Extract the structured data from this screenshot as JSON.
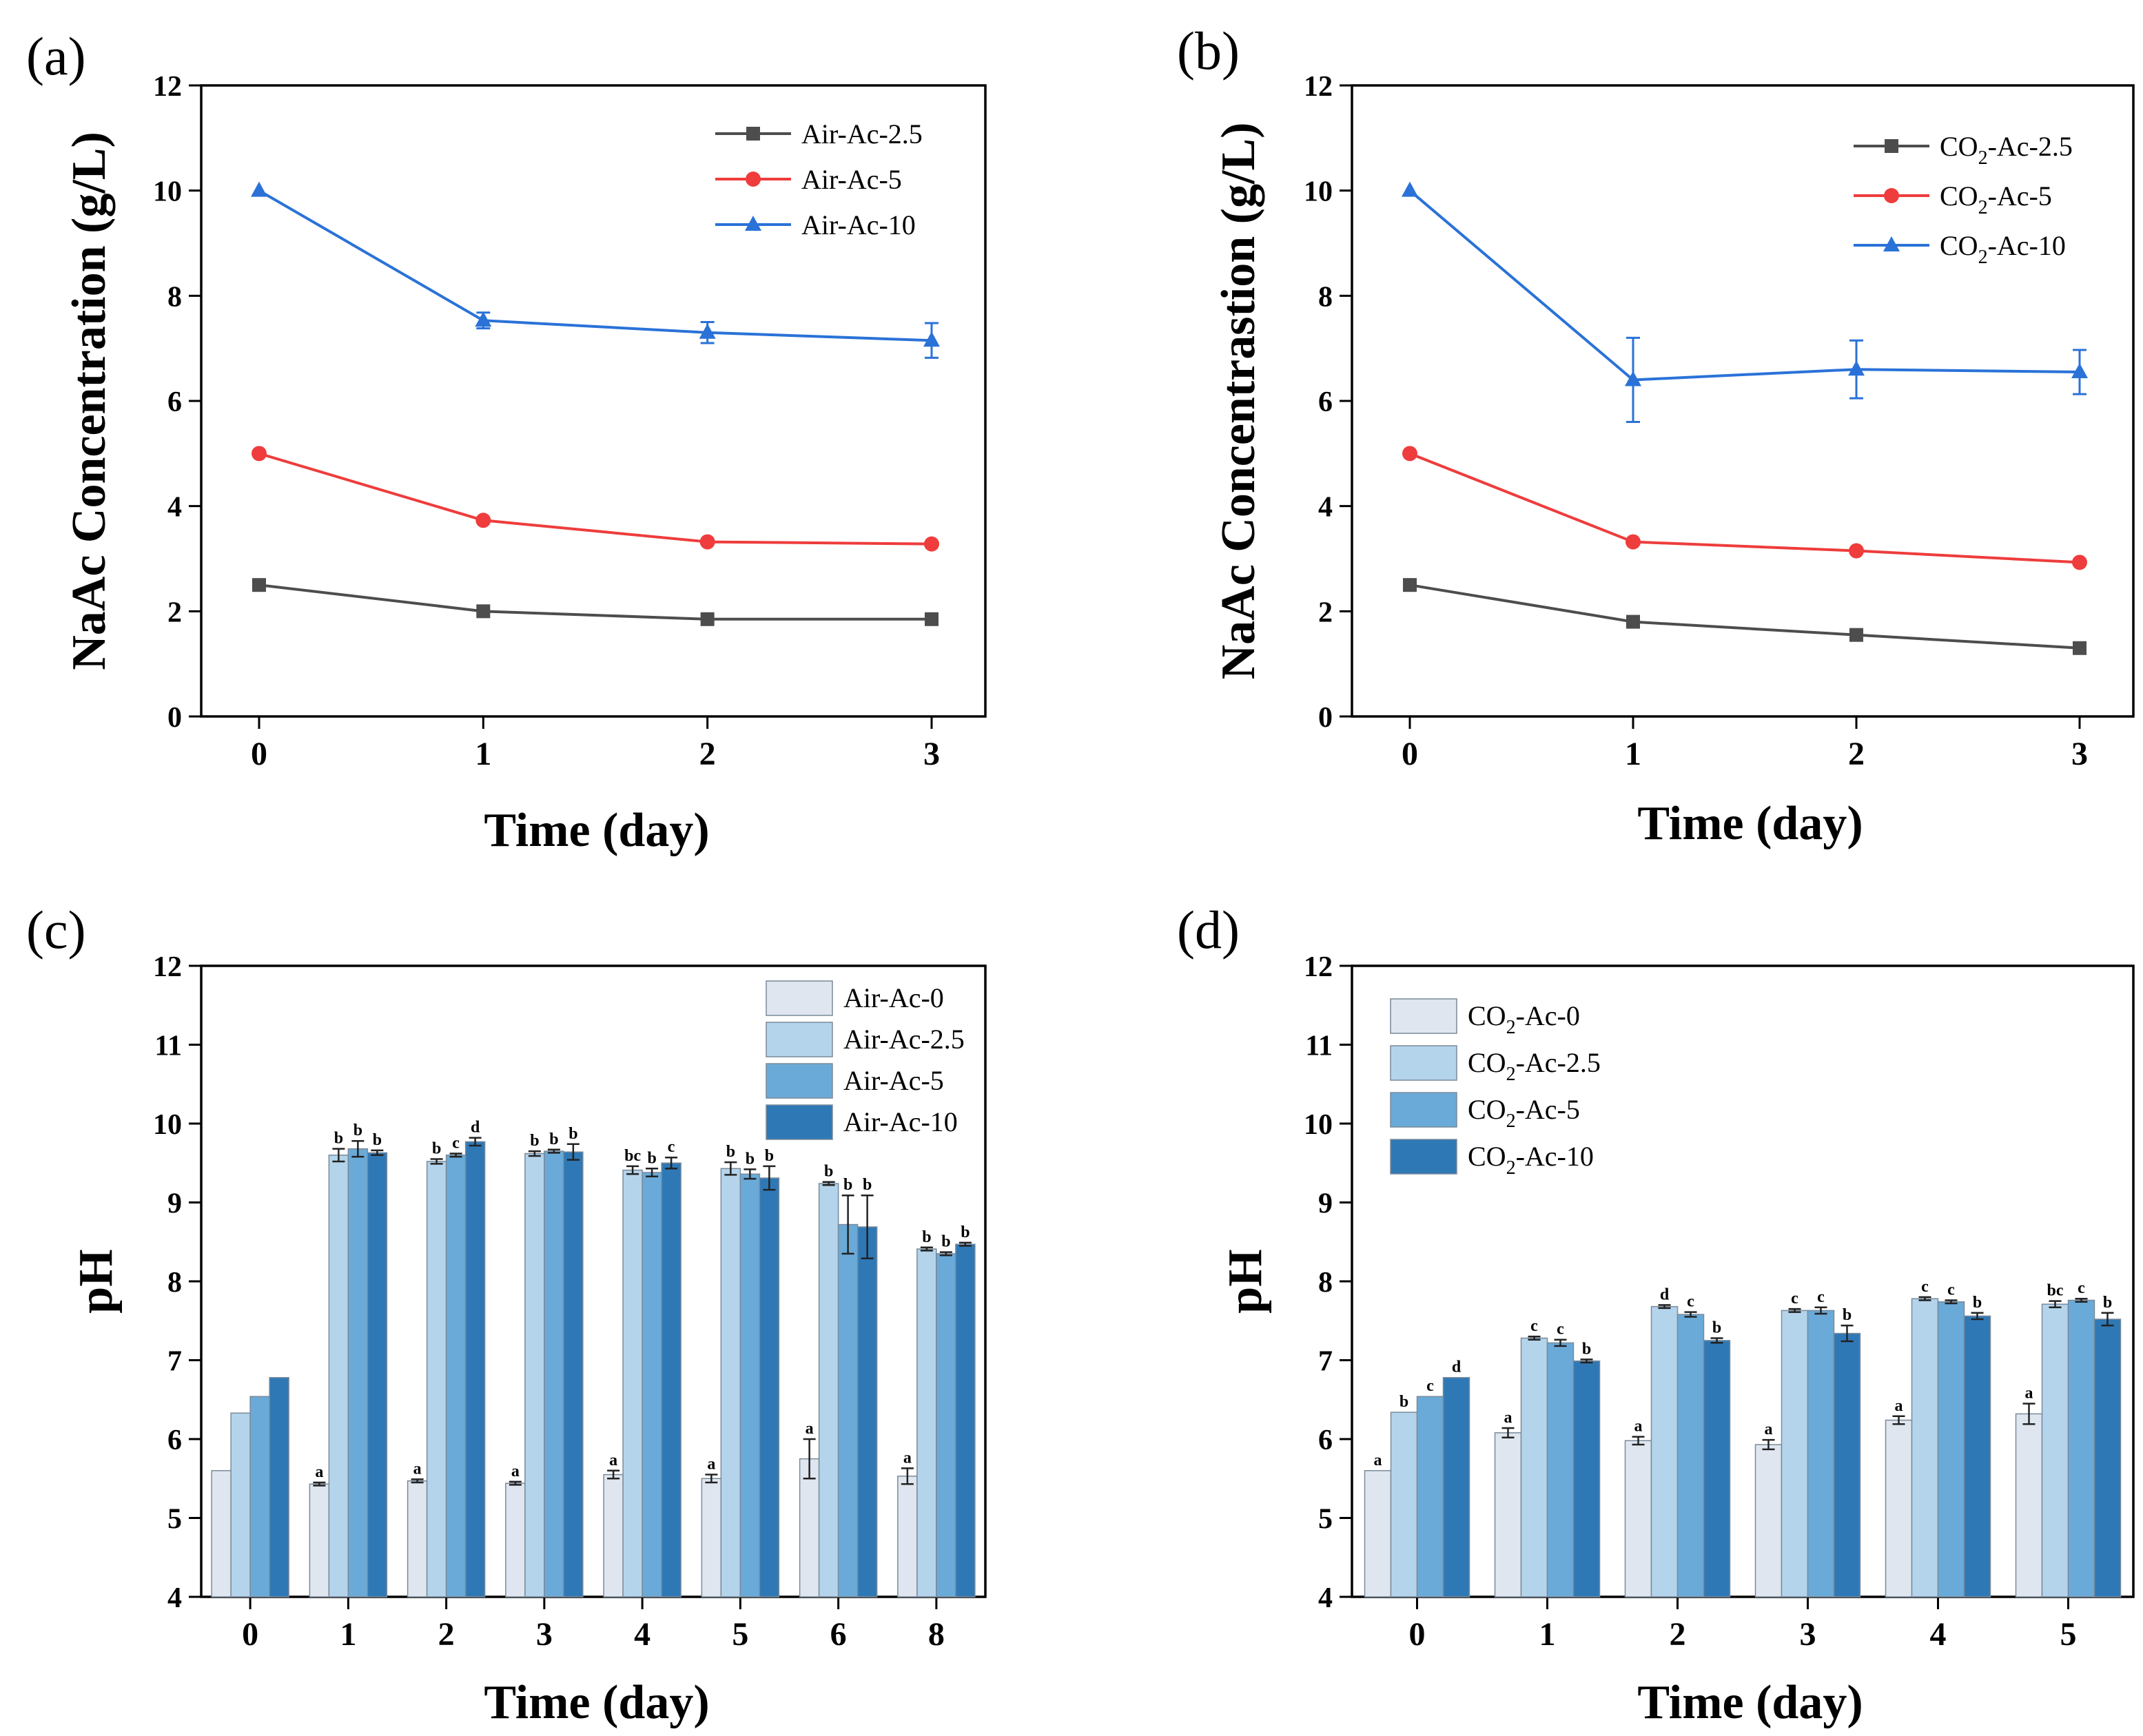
{
  "chart_data": [
    {
      "id": "a",
      "panel_label": "(a)",
      "type": "line",
      "xlabel": "Time (day)",
      "ylabel": "NaAc Concentration (g/L)",
      "ylim": [
        0,
        12
      ],
      "yticks": [
        "0",
        "2",
        "4",
        "6",
        "8",
        "10",
        "12"
      ],
      "categories": [
        "0",
        "1",
        "2",
        "3"
      ],
      "legend_position": "top-right",
      "series": [
        {
          "name": "Air-Ac-2.5",
          "legend_base": "Air-Ac-2.5",
          "color": "#4d4d4d",
          "marker": "square",
          "values": [
            2.5,
            2.0,
            1.85,
            1.85
          ],
          "errors": [
            0,
            0,
            0,
            0
          ]
        },
        {
          "name": "Air-Ac-5",
          "legend_base": "Air-Ac-5",
          "color": "#ef3c3c",
          "marker": "circle",
          "values": [
            5.0,
            3.73,
            3.32,
            3.28
          ],
          "errors": [
            0,
            0,
            0,
            0
          ]
        },
        {
          "name": "Air-Ac-10",
          "legend_base": "Air-Ac-10",
          "color": "#2a72d8",
          "marker": "triangle",
          "values": [
            10.0,
            7.53,
            7.3,
            7.15
          ],
          "errors": [
            0,
            0.15,
            0.2,
            0.33
          ]
        }
      ]
    },
    {
      "id": "b",
      "panel_label": "(b)",
      "type": "line",
      "xlabel": "Time (day)",
      "ylabel": "NaAc Concentrastion (g/L)",
      "ylim": [
        0,
        12
      ],
      "yticks": [
        "0",
        "2",
        "4",
        "6",
        "8",
        "10",
        "12"
      ],
      "categories": [
        "0",
        "1",
        "2",
        "3"
      ],
      "legend_position": "top-right",
      "series": [
        {
          "name": "CO2-Ac-2.5",
          "legend_base": "CO",
          "legend_sub": "2",
          "legend_rest": "-Ac-2.5",
          "color": "#4d4d4d",
          "marker": "square",
          "values": [
            2.5,
            1.8,
            1.55,
            1.3
          ],
          "errors": [
            0,
            0,
            0,
            0
          ]
        },
        {
          "name": "CO2-Ac-5",
          "legend_base": "CO",
          "legend_sub": "2",
          "legend_rest": "-Ac-5",
          "color": "#ef3c3c",
          "marker": "circle",
          "values": [
            5.0,
            3.32,
            3.15,
            2.93
          ],
          "errors": [
            0,
            0,
            0,
            0
          ]
        },
        {
          "name": "CO2-Ac-10",
          "legend_base": "CO",
          "legend_sub": "2",
          "legend_rest": "-Ac-10",
          "color": "#2a72d8",
          "marker": "triangle",
          "values": [
            10.0,
            6.4,
            6.6,
            6.55
          ],
          "errors": [
            0,
            0.8,
            0.55,
            0.42
          ]
        }
      ]
    },
    {
      "id": "c",
      "panel_label": "(c)",
      "type": "bar",
      "xlabel": "Time (day)",
      "ylabel": "pH",
      "ylim": [
        4,
        12
      ],
      "yticks": [
        "4",
        "5",
        "6",
        "7",
        "8",
        "9",
        "10",
        "11",
        "12"
      ],
      "categories": [
        "0",
        "1",
        "2",
        "3",
        "4",
        "5",
        "6",
        "8"
      ],
      "legend_position": "top-right",
      "series": [
        {
          "name": "Air-Ac-0",
          "legend_base": "Air-Ac-0",
          "color": "#dfe6ef",
          "values": [
            5.6,
            5.43,
            5.47,
            5.44,
            5.55,
            5.5,
            5.75,
            5.53
          ],
          "errors": [
            0,
            0.02,
            0.02,
            0.02,
            0.05,
            0.05,
            0.25,
            0.1
          ],
          "letters": [
            "",
            "a",
            "a",
            "a",
            "a",
            "a",
            "a",
            "a"
          ]
        },
        {
          "name": "Air-Ac-2.5",
          "legend_base": "Air-Ac-2.5",
          "color": "#b4d4ec",
          "values": [
            6.33,
            9.6,
            9.52,
            9.62,
            9.41,
            9.43,
            9.24,
            8.41
          ],
          "errors": [
            0,
            0.08,
            0.03,
            0.03,
            0.05,
            0.08,
            0.02,
            0.02
          ],
          "letters": [
            "",
            "b",
            "b",
            "b",
            "bc",
            "b",
            "b",
            "b"
          ]
        },
        {
          "name": "Air-Ac-5",
          "legend_base": "Air-Ac-5",
          "color": "#6aaad8",
          "values": [
            6.54,
            9.68,
            9.6,
            9.65,
            9.38,
            9.36,
            8.72,
            8.35
          ],
          "errors": [
            0,
            0.1,
            0.02,
            0.02,
            0.05,
            0.06,
            0.37,
            0.02
          ],
          "letters": [
            "",
            "b",
            "c",
            "b",
            "b",
            "b",
            "b",
            "b"
          ]
        },
        {
          "name": "Air-Ac-10",
          "legend_base": "Air-Ac-10",
          "color": "#2f78b6",
          "values": [
            6.78,
            9.63,
            9.77,
            9.64,
            9.5,
            9.31,
            8.69,
            8.47
          ],
          "errors": [
            0,
            0.03,
            0.05,
            0.1,
            0.07,
            0.15,
            0.4,
            0.02
          ],
          "letters": [
            "",
            "b",
            "d",
            "b",
            "c",
            "b",
            "b",
            "b"
          ]
        }
      ]
    },
    {
      "id": "d",
      "panel_label": "(d)",
      "type": "bar",
      "xlabel": "Time (day)",
      "ylabel": "pH",
      "ylim": [
        4,
        12
      ],
      "yticks": [
        "4",
        "5",
        "6",
        "7",
        "8",
        "9",
        "10",
        "11",
        "12"
      ],
      "categories": [
        "0",
        "1",
        "2",
        "3",
        "4",
        "5"
      ],
      "legend_position": "top-left",
      "series": [
        {
          "name": "CO2-Ac-0",
          "legend_base": "CO",
          "legend_sub": "2",
          "legend_rest": "-Ac-0",
          "color": "#dfe6ef",
          "values": [
            5.6,
            6.08,
            5.98,
            5.93,
            6.24,
            6.32
          ],
          "errors": [
            0,
            0.06,
            0.05,
            0.06,
            0.05,
            0.13
          ],
          "letters": [
            "a",
            "a",
            "a",
            "a",
            "a",
            "a"
          ]
        },
        {
          "name": "CO2-Ac-2.5",
          "legend_base": "CO",
          "legend_sub": "2",
          "legend_rest": "-Ac-2.5",
          "color": "#b4d4ec",
          "values": [
            6.34,
            7.28,
            7.68,
            7.63,
            7.78,
            7.71
          ],
          "errors": [
            0,
            0.02,
            0.02,
            0.02,
            0.02,
            0.04
          ],
          "letters": [
            "b",
            "c",
            "d",
            "c",
            "c",
            "bc"
          ]
        },
        {
          "name": "CO2-Ac-5",
          "legend_base": "CO",
          "legend_sub": "2",
          "legend_rest": "-Ac-5",
          "color": "#6aaad8",
          "values": [
            6.54,
            7.22,
            7.58,
            7.63,
            7.74,
            7.76
          ],
          "errors": [
            0,
            0.04,
            0.03,
            0.04,
            0.02,
            0.02
          ],
          "letters": [
            "c",
            "c",
            "c",
            "c",
            "c",
            "c"
          ]
        },
        {
          "name": "CO2-Ac-10",
          "legend_base": "CO",
          "legend_sub": "2",
          "legend_rest": "-Ac-10",
          "color": "#2f78b6",
          "values": [
            6.78,
            6.99,
            7.25,
            7.34,
            7.56,
            7.52
          ],
          "errors": [
            0,
            0.02,
            0.03,
            0.1,
            0.04,
            0.08
          ],
          "letters": [
            "d",
            "b",
            "b",
            "b",
            "b",
            "b"
          ]
        }
      ]
    }
  ]
}
